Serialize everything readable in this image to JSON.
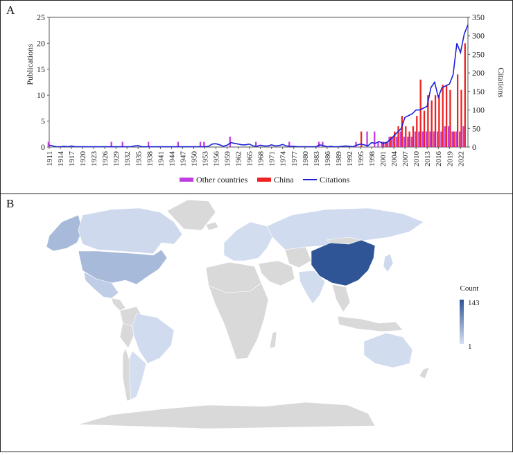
{
  "panel_a": {
    "label": "A"
  },
  "panel_b": {
    "label": "B"
  },
  "colors": {
    "other": "#c03ee0",
    "china": "#ee2222",
    "citations": "#1a22d8",
    "map_low": "#d6e0f2",
    "map_high": "#2f5597",
    "map_none": "#d9d9d9"
  },
  "chart_data": [
    {
      "type": "bar+line",
      "xlabel": "",
      "ylabel": "Publications",
      "y2label": "Citations",
      "ylim": [
        0,
        25
      ],
      "y2lim": [
        0,
        350
      ],
      "yticks": [
        "0",
        "5",
        "10",
        "15",
        "20",
        "25"
      ],
      "y2ticks": [
        "0",
        "50",
        "100",
        "150",
        "200",
        "250",
        "300",
        "350"
      ],
      "x_tick_labels": [
        "1911",
        "1914",
        "1917",
        "1920",
        "1923",
        "1926",
        "1929",
        "1932",
        "1935",
        "1938",
        "1941",
        "1944",
        "1947",
        "1950",
        "1953",
        "1956",
        "1959",
        "1962",
        "1965",
        "1968",
        "1971",
        "1974",
        "1977",
        "1980",
        "1983",
        "1986",
        "1989",
        "1992",
        "1995",
        "1998",
        "2001",
        "2004",
        "2007",
        "2010",
        "2013",
        "2016",
        "2019",
        "2022"
      ],
      "x_range": [
        1911,
        2024
      ],
      "legend": {
        "placement": "bottom",
        "entries": [
          "Other countries",
          "China",
          "Citations"
        ]
      },
      "series": [
        {
          "name": "Other countries",
          "kind": "bar",
          "x": [
            1911,
            1928,
            1931,
            1938,
            1946,
            1952,
            1953,
            1960,
            1967,
            1976,
            1984,
            1985,
            1994,
            1997,
            1999,
            2000,
            2001,
            2002,
            2003,
            2004,
            2005,
            2006,
            2007,
            2008,
            2009,
            2010,
            2011,
            2012,
            2013,
            2014,
            2015,
            2016,
            2017,
            2018,
            2019,
            2020,
            2021,
            2022,
            2023
          ],
          "values": [
            1,
            1,
            1,
            1,
            1,
            1,
            1,
            2,
            1,
            1,
            1,
            1,
            1,
            3,
            3,
            1,
            1,
            1,
            2,
            2,
            2,
            3,
            2,
            2,
            2,
            3,
            3,
            3,
            3,
            3,
            3,
            3,
            3,
            4,
            4,
            3,
            3,
            3,
            4
          ]
        },
        {
          "name": "China",
          "kind": "bar",
          "x": [
            1995,
            2001,
            2002,
            2003,
            2004,
            2005,
            2006,
            2007,
            2008,
            2009,
            2010,
            2011,
            2012,
            2013,
            2014,
            2015,
            2016,
            2017,
            2018,
            2019,
            2020,
            2021,
            2022,
            2023
          ],
          "values": [
            3,
            1,
            1,
            2,
            3,
            4,
            6,
            4,
            3,
            4,
            6,
            13,
            7,
            10,
            9,
            10,
            10,
            12,
            12,
            11,
            3,
            14,
            11,
            20
          ]
        },
        {
          "name": "Citations",
          "kind": "line",
          "x": [
            1911,
            1912,
            1913,
            1914,
            1915,
            1916,
            1917,
            1918,
            1919,
            1920,
            1925,
            1930,
            1933,
            1934,
            1935,
            1936,
            1940,
            1945,
            1950,
            1953,
            1954,
            1955,
            1956,
            1957,
            1958,
            1959,
            1960,
            1961,
            1962,
            1963,
            1964,
            1965,
            1966,
            1967,
            1968,
            1969,
            1970,
            1971,
            1972,
            1973,
            1974,
            1975,
            1976,
            1977,
            1978,
            1979,
            1980,
            1983,
            1984,
            1985,
            1986,
            1987,
            1988,
            1989,
            1990,
            1991,
            1992,
            1993,
            1994,
            1995,
            1996,
            1997,
            1998,
            1999,
            2000,
            2001,
            2002,
            2003,
            2004,
            2005,
            2006,
            2007,
            2008,
            2009,
            2010,
            2011,
            2012,
            2013,
            2014,
            2015,
            2016,
            2017,
            2018,
            2019,
            2020,
            2021,
            2022,
            2023,
            2024
          ],
          "values": [
            5,
            3,
            1,
            1,
            2,
            1,
            3,
            1,
            1,
            1,
            1,
            1,
            1,
            3,
            4,
            1,
            1,
            1,
            1,
            1,
            2,
            8,
            9,
            6,
            2,
            5,
            12,
            10,
            8,
            6,
            6,
            8,
            3,
            2,
            5,
            3,
            3,
            6,
            3,
            4,
            7,
            3,
            2,
            2,
            1,
            1,
            1,
            1,
            6,
            4,
            1,
            2,
            1,
            1,
            2,
            3,
            2,
            1,
            5,
            8,
            6,
            3,
            12,
            10,
            15,
            10,
            12,
            20,
            30,
            40,
            50,
            80,
            85,
            90,
            100,
            100,
            105,
            110,
            160,
            175,
            135,
            160,
            165,
            170,
            195,
            280,
            255,
            305,
            330
          ]
        }
      ]
    },
    {
      "type": "choropleth",
      "legend": {
        "title": "Count",
        "max_label": "143",
        "min_label": "1",
        "placement": "right"
      },
      "regions": [
        {
          "name": "China",
          "value": 143
        },
        {
          "name": "United States",
          "value": 40
        },
        {
          "name": "Alaska",
          "value": 40
        },
        {
          "name": "Mexico",
          "value": 20
        },
        {
          "name": "Canada",
          "value": 8
        },
        {
          "name": "Brazil",
          "value": 6
        },
        {
          "name": "Russia",
          "value": 6
        },
        {
          "name": "Australia",
          "value": 5
        },
        {
          "name": "India",
          "value": 5
        },
        {
          "name": "Japan",
          "value": 8
        },
        {
          "name": "Argentina",
          "value": 3
        },
        {
          "name": "Europe",
          "value": 4
        }
      ]
    }
  ]
}
